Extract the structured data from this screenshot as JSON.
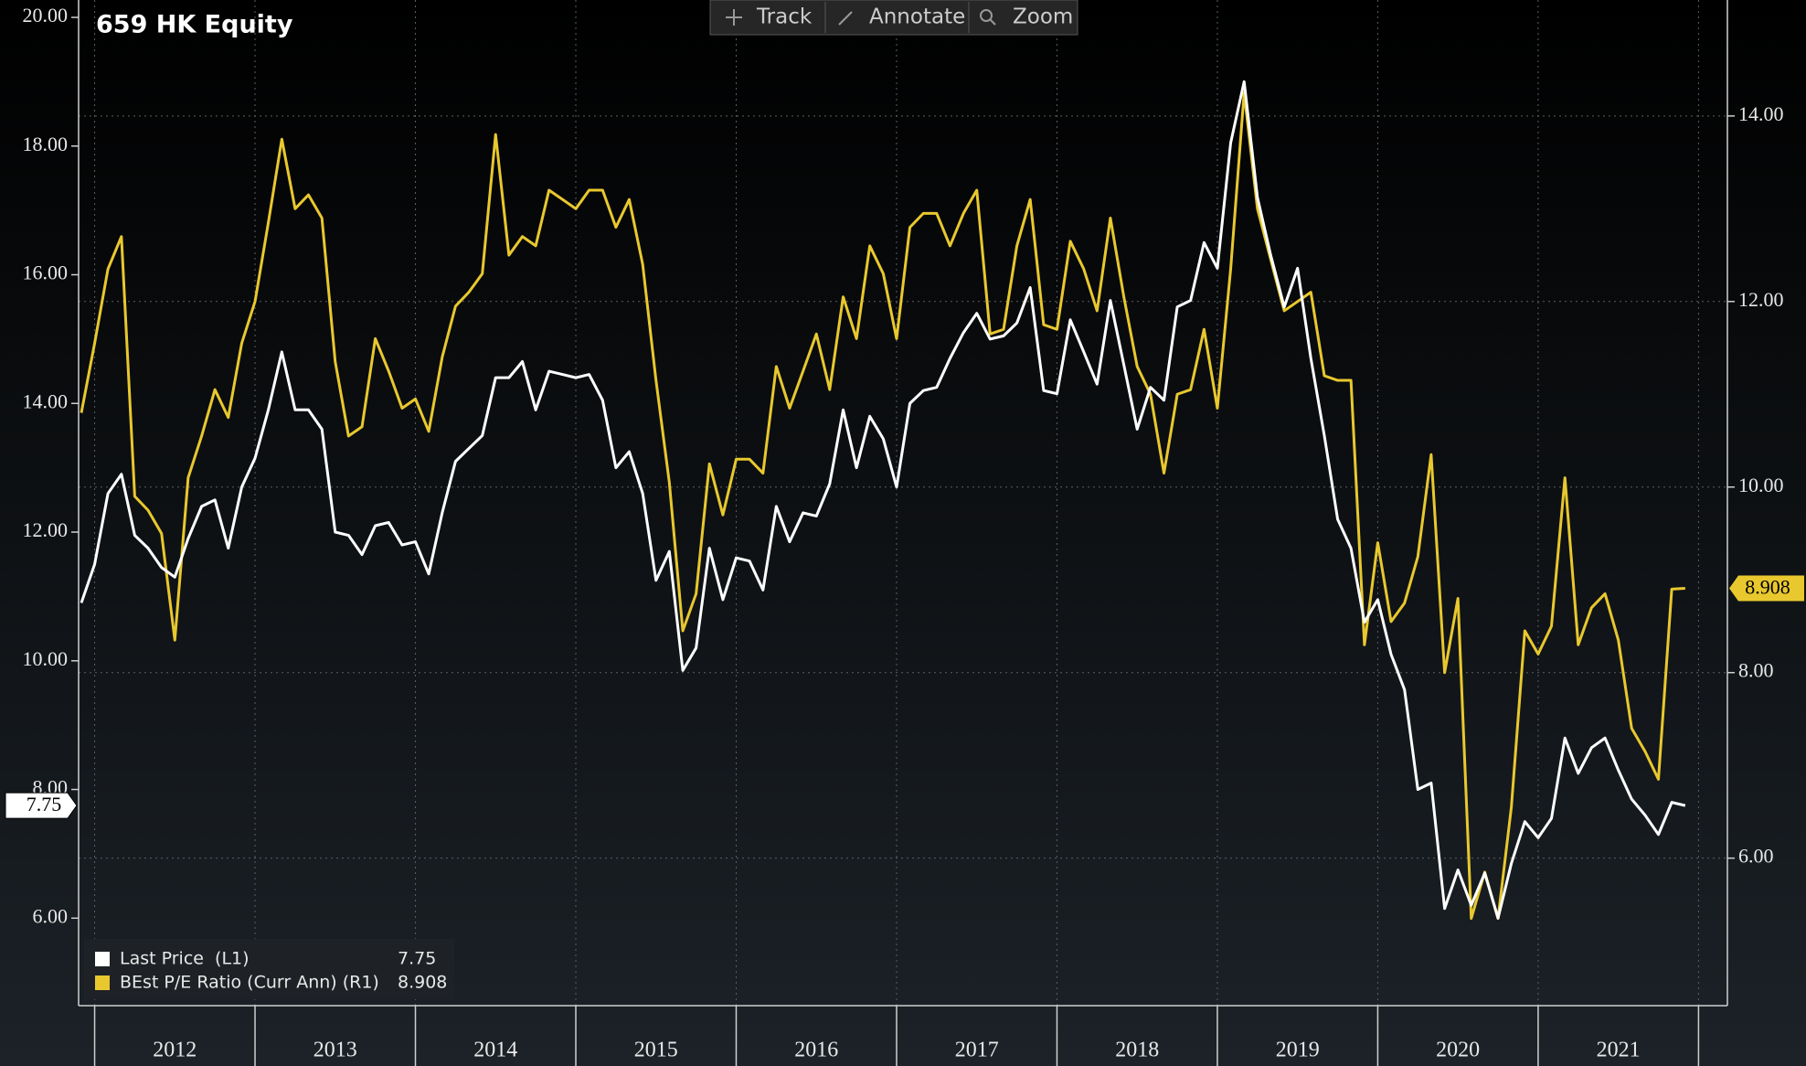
{
  "toolbar": [
    "Track",
    "Annotate",
    "Zoom"
  ],
  "chart_data": {
    "type": "line",
    "title": "659 HK Equity",
    "x": [
      2011.917,
      2012,
      2012.083,
      2012.167,
      2012.25,
      2012.333,
      2012.417,
      2012.5,
      2012.583,
      2012.667,
      2012.75,
      2012.833,
      2012.917,
      2013,
      2013.083,
      2013.167,
      2013.25,
      2013.333,
      2013.417,
      2013.5,
      2013.583,
      2013.667,
      2013.75,
      2013.833,
      2013.917,
      2014,
      2014.083,
      2014.167,
      2014.25,
      2014.333,
      2014.417,
      2014.5,
      2014.583,
      2014.667,
      2014.75,
      2014.833,
      2014.917,
      2015,
      2015.083,
      2015.167,
      2015.25,
      2015.333,
      2015.417,
      2015.5,
      2015.583,
      2015.667,
      2015.75,
      2015.833,
      2015.917,
      2016,
      2016.083,
      2016.167,
      2016.25,
      2016.333,
      2016.417,
      2016.5,
      2016.583,
      2016.667,
      2016.75,
      2016.833,
      2016.917,
      2017,
      2017.083,
      2017.167,
      2017.25,
      2017.333,
      2017.417,
      2017.5,
      2017.583,
      2017.667,
      2017.75,
      2017.833,
      2017.917,
      2018,
      2018.083,
      2018.167,
      2018.25,
      2018.333,
      2018.417,
      2018.5,
      2018.583,
      2018.667,
      2018.75,
      2018.833,
      2018.917,
      2019,
      2019.083,
      2019.167,
      2019.25,
      2019.333,
      2019.417,
      2019.5,
      2019.583,
      2019.667,
      2019.75,
      2019.833,
      2019.917,
      2020,
      2020.083,
      2020.167,
      2020.25,
      2020.333,
      2020.417,
      2020.5,
      2020.583,
      2020.667,
      2020.75,
      2020.833,
      2020.917,
      2021,
      2021.083,
      2021.167,
      2021.25,
      2021.333,
      2021.417,
      2021.5,
      2021.583,
      2021.667,
      2021.75,
      2021.833,
      2021.917
    ],
    "xlim": [
      2011.9,
      2022.18
    ],
    "xticks": [
      {
        "value": 2012.5,
        "label": "2012"
      },
      {
        "value": 2013.5,
        "label": "2013"
      },
      {
        "value": 2014.5,
        "label": "2014"
      },
      {
        "value": 2015.5,
        "label": "2015"
      },
      {
        "value": 2016.5,
        "label": "2016"
      },
      {
        "value": 2017.5,
        "label": "2017"
      },
      {
        "value": 2018.5,
        "label": "2018"
      },
      {
        "value": 2019.5,
        "label": "2019"
      },
      {
        "value": 2020.5,
        "label": "2020"
      },
      {
        "value": 2021.5,
        "label": "2021"
      }
    ],
    "ylim": [
      4.64,
      20.27
    ],
    "yticks": [
      {
        "value": 6,
        "label": "6.00"
      },
      {
        "value": 8,
        "label": "8.00"
      },
      {
        "value": 10,
        "label": "10.00"
      },
      {
        "value": 12,
        "label": "12.00"
      },
      {
        "value": 14,
        "label": "14.00"
      },
      {
        "value": 16,
        "label": "16.00"
      },
      {
        "value": 18,
        "label": "18.00"
      },
      {
        "value": 20,
        "label": "20.00"
      }
    ],
    "y2lim": [
      4.41,
      15.25
    ],
    "y2ticks": [
      {
        "value": 6,
        "label": "6.00"
      },
      {
        "value": 8,
        "label": "8.00"
      },
      {
        "value": 10,
        "label": "10.00"
      },
      {
        "value": 12,
        "label": "12.00"
      },
      {
        "value": 14,
        "label": "14.00"
      }
    ],
    "grid": true,
    "legend": "lower left",
    "series": [
      {
        "name": "Last Price  (L1)",
        "color": "#ffffff",
        "axis": "y",
        "values": [
          10.9,
          11.5,
          12.6,
          12.9,
          11.95,
          11.75,
          11.45,
          11.3,
          11.9,
          12.4,
          12.5,
          11.75,
          12.7,
          13.15,
          13.9,
          14.8,
          13.9,
          13.9,
          13.6,
          12.0,
          11.95,
          11.65,
          12.1,
          12.15,
          11.8,
          11.85,
          11.35,
          12.3,
          13.1,
          13.3,
          13.5,
          14.4,
          14.4,
          14.65,
          13.9,
          14.5,
          14.45,
          14.4,
          14.45,
          14.05,
          13.0,
          13.25,
          12.6,
          11.25,
          11.7,
          9.85,
          10.2,
          11.75,
          10.95,
          11.6,
          11.55,
          11.1,
          12.4,
          11.85,
          12.3,
          12.25,
          12.75,
          13.9,
          13.0,
          13.8,
          13.45,
          12.7,
          14.0,
          14.2,
          14.25,
          14.7,
          15.1,
          15.4,
          15.0,
          15.05,
          15.25,
          15.8,
          14.2,
          14.15,
          15.3,
          14.8,
          14.3,
          15.6,
          14.6,
          13.6,
          14.25,
          14.05,
          15.5,
          15.6,
          16.5,
          16.1,
          18.05,
          19.0,
          17.2,
          16.3,
          15.5,
          16.1,
          14.7,
          13.5,
          12.2,
          11.75,
          10.6,
          10.95,
          10.1,
          9.55,
          8.0,
          8.1,
          6.15,
          6.75,
          6.2,
          6.7,
          6.0,
          6.85,
          7.5,
          7.25,
          7.55,
          8.8,
          8.25,
          8.65,
          8.8,
          8.3,
          7.85,
          7.6,
          7.3,
          7.8,
          7.75
        ]
      },
      {
        "name": "BEst P/E Ratio (Curr Ann) (R1)",
        "color": "#e8c82e",
        "axis": "y2",
        "values": [
          10.8,
          11.55,
          12.35,
          12.7,
          9.9,
          9.75,
          9.5,
          8.35,
          10.1,
          10.55,
          11.05,
          10.75,
          11.55,
          12.0,
          12.85,
          13.75,
          13.0,
          13.15,
          12.9,
          11.35,
          10.55,
          10.65,
          11.6,
          11.25,
          10.85,
          10.95,
          10.6,
          11.4,
          11.95,
          12.1,
          12.3,
          13.8,
          12.5,
          12.7,
          12.6,
          13.2,
          13.1,
          13.0,
          13.2,
          13.2,
          12.8,
          13.1,
          12.4,
          11.15,
          10.05,
          8.45,
          8.85,
          10.25,
          9.7,
          10.3,
          10.3,
          10.15,
          11.3,
          10.85,
          11.25,
          11.65,
          11.05,
          12.05,
          11.6,
          12.6,
          12.3,
          11.6,
          12.8,
          12.95,
          12.95,
          12.6,
          12.95,
          13.2,
          11.65,
          11.7,
          12.6,
          13.1,
          11.75,
          11.7,
          12.65,
          12.35,
          11.9,
          12.9,
          12.05,
          11.3,
          11.0,
          10.15,
          11.0,
          11.05,
          11.7,
          10.85,
          12.35,
          14.25,
          13.0,
          12.45,
          11.9,
          12.0,
          12.1,
          11.2,
          11.15,
          11.15,
          8.3,
          9.4,
          8.55,
          8.75,
          9.25,
          10.35,
          8.0,
          8.8,
          5.35,
          5.85,
          5.35,
          6.55,
          8.45,
          8.2,
          8.5,
          10.1,
          8.3,
          8.7,
          8.85,
          8.35,
          7.4,
          7.15,
          6.85,
          8.9,
          8.908
        ]
      }
    ]
  }
}
